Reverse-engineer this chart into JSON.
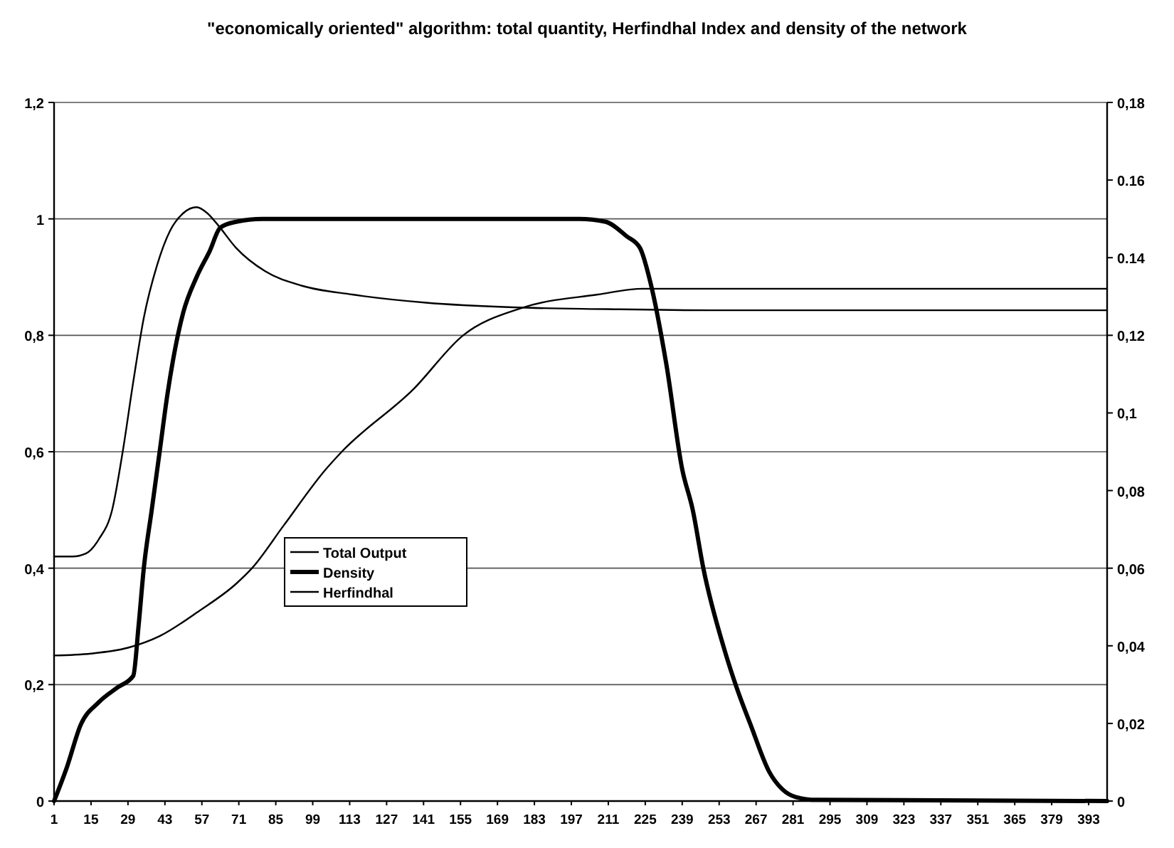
{
  "chart_data": {
    "type": "line",
    "title": "\"economically oriented\" algorithm: total quantity, Herfindhal  Index and density of the network",
    "xlim": [
      1,
      400
    ],
    "xticks": [
      1,
      15,
      29,
      43,
      57,
      71,
      85,
      99,
      113,
      127,
      141,
      155,
      169,
      183,
      197,
      211,
      225,
      239,
      253,
      267,
      281,
      295,
      309,
      323,
      337,
      351,
      365,
      379,
      393
    ],
    "ylim": [
      0,
      1.2
    ],
    "yticks": [
      0,
      {
        "value": 0.2,
        "label": "0,2"
      },
      {
        "value": 0.4,
        "label": "0,4"
      },
      {
        "value": 0.6,
        "label": "0,6"
      },
      {
        "value": 0.8,
        "label": "0,8"
      },
      1,
      {
        "value": 1.2,
        "label": "1,2"
      }
    ],
    "y2lim": [
      0,
      0.18
    ],
    "y2ticks": [
      0,
      {
        "value": 0.02,
        "label": "0,02"
      },
      {
        "value": 0.04,
        "label": "0,04"
      },
      {
        "value": 0.06,
        "label": "0,06"
      },
      {
        "value": 0.08,
        "label": "0,08"
      },
      {
        "value": 0.1,
        "label": "0,1"
      },
      {
        "value": 0.12,
        "label": "0,12"
      },
      0.14,
      0.16,
      {
        "value": 0.18,
        "label": "0,18"
      }
    ],
    "grid": "y",
    "legend": "center left",
    "marker": "none",
    "line_style": "solid",
    "series": [
      {
        "name": "Total Output",
        "color": "#000000",
        "x": [
          1,
          8,
          13,
          18,
          23,
          27,
          31,
          35,
          40,
          45,
          50,
          55,
          59,
          63,
          70,
          81,
          95,
          114,
          142,
          175,
          210,
          250,
          400
        ],
        "values": [
          0.42,
          0.42,
          0.425,
          0.45,
          0.5,
          0.6,
          0.72,
          0.83,
          0.92,
          0.98,
          1.01,
          1.02,
          1.01,
          0.99,
          0.95,
          0.91,
          0.885,
          0.87,
          0.856,
          0.848,
          0.845,
          0.843,
          0.843
        ]
      },
      {
        "name": "Density",
        "color": "#000000",
        "x": [
          1,
          6,
          11,
          18,
          25,
          31,
          33,
          35,
          38,
          41,
          44,
          47,
          50,
          55,
          60,
          64,
          70,
          80,
          200,
          210,
          218,
          223,
          227,
          233,
          239,
          243,
          247,
          255,
          260,
          265,
          272,
          277,
          282,
          290,
          400
        ],
        "values": [
          0,
          0.06,
          0.13,
          0.17,
          0.195,
          0.215,
          0.3,
          0.4,
          0.5,
          0.6,
          0.7,
          0.78,
          0.84,
          0.9,
          0.945,
          0.985,
          0.995,
          1,
          1,
          0.995,
          0.97,
          0.95,
          0.89,
          0.75,
          0.57,
          0.5,
          0.4,
          0.26,
          0.19,
          0.13,
          0.05,
          0.02,
          0.007,
          0.002,
          0
        ]
      },
      {
        "name": "Herfindhal",
        "color": "#000000",
        "axis": "y2",
        "x": [
          1,
          15,
          29,
          41,
          56,
          70,
          76,
          88,
          104,
          110,
          137,
          156,
          178,
          207,
          224,
          240,
          400
        ],
        "values": [
          0.0375,
          0.038,
          0.0395,
          0.0425,
          0.049,
          0.056,
          0.06,
          0.071,
          0.0855,
          0.09,
          0.106,
          0.12,
          0.127,
          0.1305,
          0.132,
          0.132,
          0.132
        ]
      }
    ]
  }
}
